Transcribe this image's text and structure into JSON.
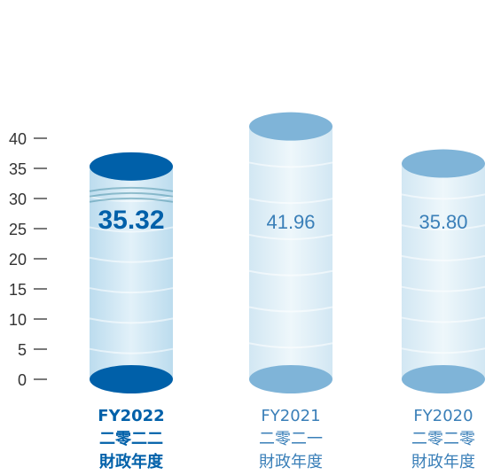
{
  "chart_data": {
    "type": "bar",
    "style": "cylinder",
    "ylim": [
      0,
      42
    ],
    "yticks": [
      0,
      5,
      10,
      15,
      20,
      25,
      30,
      35,
      40
    ],
    "grid": false,
    "bars": [
      {
        "value": 35.32,
        "value_label": "35.32",
        "label_lines": [
          "FY2022",
          "二零二二",
          "財政年度"
        ],
        "highlight": true,
        "color": "#0060a9"
      },
      {
        "value": 41.96,
        "value_label": "41.96",
        "label_lines": [
          "FY2021",
          "二零二一",
          "財政年度"
        ],
        "highlight": false,
        "color": "#7fb4d8"
      },
      {
        "value": 35.8,
        "value_label": "35.80",
        "label_lines": [
          "FY2020",
          "二零二零",
          "財政年度"
        ],
        "highlight": false,
        "color": "#7fb4d8"
      }
    ]
  },
  "colors": {
    "axis_text": "#333333",
    "highlight_text": "#0060a9",
    "normal_text": "#3a7fb8",
    "body_fill": "#e4f1f8"
  }
}
